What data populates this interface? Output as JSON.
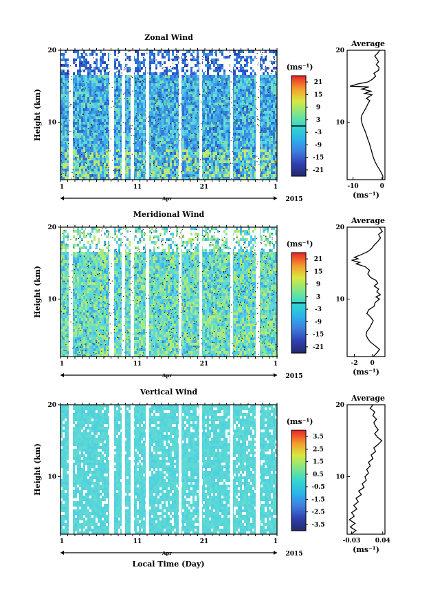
{
  "figure": {
    "xlabel": "Local Time (Day)",
    "month_label": "Apr",
    "year_label": "2015"
  },
  "chart_data": [
    {
      "type": "heatmap",
      "title": "Zonal Wind",
      "ylabel": "Height (km)",
      "ylim": [
        2,
        20
      ],
      "yticks": [
        "10",
        "20"
      ],
      "xticks": [
        "1",
        "11",
        "21",
        "1"
      ],
      "colorbar": {
        "unit": "(ms⁻¹)",
        "ticks": [
          "21",
          "15",
          "9",
          "3",
          "-3",
          "-9",
          "-15",
          "-21"
        ],
        "range": [
          -24,
          24
        ],
        "zero_contour": true
      }
    },
    {
      "type": "line",
      "title": "Average",
      "xlabel": "(ms⁻¹)",
      "xticks": [
        "-10",
        "0"
      ],
      "xlim": [
        -12,
        1
      ],
      "ylim": [
        2,
        20
      ],
      "yticks": [
        "10",
        "20"
      ],
      "points": [
        [
          0.2,
          2
        ],
        [
          0.3,
          2.5
        ],
        [
          -0.3,
          3
        ],
        [
          -1,
          3.5
        ],
        [
          -1.8,
          4
        ],
        [
          -2.4,
          4.5
        ],
        [
          -2.9,
          5
        ],
        [
          -3.3,
          5.5
        ],
        [
          -3.6,
          6
        ],
        [
          -4,
          6.5
        ],
        [
          -4.3,
          7
        ],
        [
          -4.8,
          7.5
        ],
        [
          -5.2,
          8
        ],
        [
          -5.6,
          8.5
        ],
        [
          -6.1,
          9
        ],
        [
          -6.6,
          9.5
        ],
        [
          -7,
          10
        ],
        [
          -7.2,
          10.5
        ],
        [
          -6.9,
          11
        ],
        [
          -6.2,
          11.5
        ],
        [
          -5.5,
          12
        ],
        [
          -4.9,
          12.5
        ],
        [
          -4.2,
          13
        ],
        [
          -5.4,
          13.3
        ],
        [
          -3.5,
          13.8
        ],
        [
          -6,
          14
        ],
        [
          -3.8,
          14.3
        ],
        [
          -7,
          14.6
        ],
        [
          -4.5,
          14.9
        ],
        [
          -11,
          15
        ],
        [
          -8.5,
          15.3
        ],
        [
          -4.8,
          15.6
        ],
        [
          -3.2,
          16
        ],
        [
          -2.2,
          16.4
        ],
        [
          -2.8,
          16.8
        ],
        [
          -1.2,
          17.2
        ],
        [
          -1,
          17.6
        ],
        [
          -2,
          18
        ],
        [
          -1.2,
          18.4
        ],
        [
          -1.8,
          18.8
        ],
        [
          -2.5,
          19.2
        ],
        [
          -1.5,
          19.6
        ],
        [
          -0.8,
          20
        ]
      ]
    },
    {
      "type": "heatmap",
      "title": "Meridional Wind",
      "ylabel": "Height (km)",
      "ylim": [
        2,
        20
      ],
      "yticks": [
        "10",
        "20"
      ],
      "xticks": [
        "1",
        "11",
        "21",
        "1"
      ],
      "colorbar": {
        "unit": "(ms⁻¹)",
        "ticks": [
          "21",
          "15",
          "9",
          "3",
          "-3",
          "-9",
          "-15",
          "-21"
        ],
        "range": [
          -24,
          24
        ],
        "zero_contour": true
      }
    },
    {
      "type": "line",
      "title": "Average",
      "xlabel": "(ms⁻¹)",
      "xticks": [
        "-2",
        "0"
      ],
      "xlim": [
        -2.8,
        1.4
      ],
      "ylim": [
        2,
        20
      ],
      "yticks": [
        "10",
        "20"
      ],
      "points": [
        [
          0.1,
          2
        ],
        [
          0.5,
          2.5
        ],
        [
          0.8,
          3
        ],
        [
          0.3,
          3.5
        ],
        [
          -0.2,
          4
        ],
        [
          -0.5,
          4.5
        ],
        [
          -0.7,
          5
        ],
        [
          -0.6,
          5.5
        ],
        [
          -0.3,
          6
        ],
        [
          -0.1,
          6.5
        ],
        [
          0.1,
          7
        ],
        [
          -0.2,
          7.5
        ],
        [
          -0.6,
          8
        ],
        [
          -0.4,
          8.5
        ],
        [
          0.2,
          9
        ],
        [
          0.3,
          9.5
        ],
        [
          0.8,
          10
        ],
        [
          0.4,
          10.3
        ],
        [
          0.9,
          10.6
        ],
        [
          0.5,
          11
        ],
        [
          0.7,
          11.4
        ],
        [
          0.2,
          11.8
        ],
        [
          0.6,
          12.2
        ],
        [
          0.4,
          12.6
        ],
        [
          -0.2,
          13
        ],
        [
          -0.5,
          13.5
        ],
        [
          -0.3,
          14
        ],
        [
          -0.8,
          14.5
        ],
        [
          -1.8,
          14.9
        ],
        [
          -1.4,
          15.1
        ],
        [
          -2.3,
          15.4
        ],
        [
          -1.6,
          15.6
        ],
        [
          -2,
          15.8
        ],
        [
          -1.2,
          16.2
        ],
        [
          -0.5,
          16.6
        ],
        [
          -0.1,
          17
        ],
        [
          0.2,
          17.5
        ],
        [
          0.6,
          18
        ],
        [
          0.9,
          18.5
        ],
        [
          0.7,
          19
        ],
        [
          1.1,
          19.4
        ],
        [
          0.8,
          20
        ]
      ]
    },
    {
      "type": "heatmap",
      "title": "Vertical Wind",
      "ylabel": "Height (km)",
      "ylim": [
        2,
        20
      ],
      "yticks": [
        "10",
        "20"
      ],
      "xticks": [
        "1",
        "11",
        "21",
        "1"
      ],
      "colorbar": {
        "unit": "(ms⁻¹)",
        "ticks": [
          "3.5",
          "2.5",
          "1.5",
          "0.5",
          "-0.5",
          "-1.5",
          "-2.5",
          "-3.5"
        ],
        "range": [
          -4,
          4
        ],
        "zero_contour": false
      }
    },
    {
      "type": "line",
      "title": "Average",
      "xlabel": "(ms⁻¹)",
      "xticks": [
        "-0.03",
        "0.04"
      ],
      "xlim": [
        -0.04,
        0.045
      ],
      "ylim": [
        2,
        20
      ],
      "yticks": [
        "10",
        "20"
      ],
      "points": [
        [
          -0.032,
          2
        ],
        [
          -0.02,
          2.5
        ],
        [
          -0.033,
          3
        ],
        [
          -0.022,
          3.5
        ],
        [
          -0.035,
          4
        ],
        [
          -0.024,
          4.5
        ],
        [
          -0.03,
          5
        ],
        [
          -0.018,
          5.5
        ],
        [
          -0.025,
          6
        ],
        [
          -0.015,
          6.5
        ],
        [
          -0.02,
          7
        ],
        [
          -0.008,
          7.5
        ],
        [
          -0.014,
          8
        ],
        [
          -0.002,
          8.5
        ],
        [
          -0.006,
          9
        ],
        [
          0.003,
          9.5
        ],
        [
          0,
          10
        ],
        [
          0.008,
          10.5
        ],
        [
          0.004,
          11
        ],
        [
          0.012,
          11.5
        ],
        [
          0.008,
          12
        ],
        [
          0.018,
          12.5
        ],
        [
          0.014,
          13
        ],
        [
          0.024,
          13.5
        ],
        [
          0.02,
          14
        ],
        [
          0.03,
          14.5
        ],
        [
          0.038,
          15
        ],
        [
          0.028,
          15.5
        ],
        [
          0.022,
          16
        ],
        [
          0.03,
          16.5
        ],
        [
          0.024,
          17
        ],
        [
          0.02,
          17.5
        ],
        [
          0.026,
          18
        ],
        [
          0.018,
          18.5
        ],
        [
          0.022,
          19
        ],
        [
          0.012,
          19.5
        ],
        [
          0.018,
          20
        ]
      ]
    }
  ]
}
